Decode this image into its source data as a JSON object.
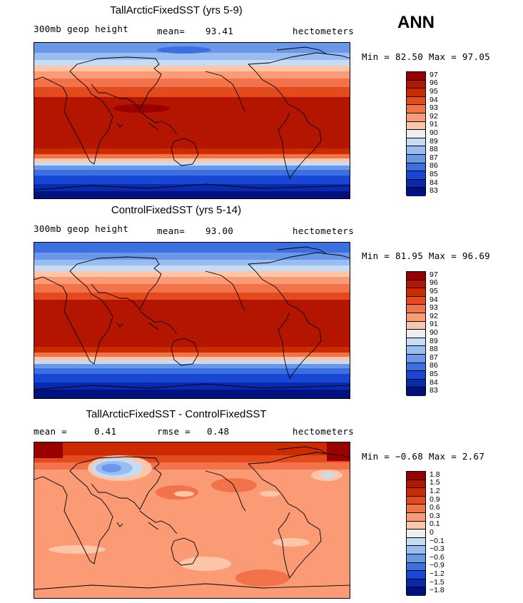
{
  "season": "ANN",
  "units": "hectometers",
  "panels": [
    {
      "title": "TallArcticFixedSST (yrs 5-9)",
      "left_label": "300mb geop height",
      "mean_label": "mean=",
      "mean_value": "93.41",
      "minmax": "Min =  82.50 Max =  97.05",
      "legend": [
        "97",
        "96",
        "95",
        "94",
        "93",
        "92",
        "91",
        "90",
        "89",
        "88",
        "87",
        "86",
        "85",
        "84",
        "83"
      ]
    },
    {
      "title": "ControlFixedSST (yrs 5-14)",
      "left_label": "300mb geop height",
      "mean_label": "mean=",
      "mean_value": "93.00",
      "minmax": "Min =  81.95 Max =  96.69",
      "legend": [
        "97",
        "96",
        "95",
        "94",
        "93",
        "92",
        "91",
        "90",
        "89",
        "88",
        "87",
        "86",
        "85",
        "84",
        "83"
      ]
    },
    {
      "title": "TallArcticFixedSST - ControlFixedSST",
      "mean_label": "mean =",
      "mean_value": "0.41",
      "rmse_label": "rmse =",
      "rmse_value": "0.48",
      "minmax": "Min =  −0.68 Max =   2.67",
      "legend": [
        "1.8",
        "1.5",
        "1.2",
        "0.9",
        "0.6",
        "0.3",
        "0.1",
        "0",
        "−0.1",
        "−0.3",
        "−0.6",
        "−0.9",
        "−1.2",
        "−1.5",
        "−1.8"
      ]
    }
  ],
  "colors": {
    "scale": [
      "#990000",
      "#b31500",
      "#cc2a00",
      "#e34a1c",
      "#f2734a",
      "#fa9b75",
      "#fdc6a9",
      "#eeeeee",
      "#c6dbf4",
      "#99bdf0",
      "#6b97e8",
      "#3c6fe0",
      "#1847d6",
      "#0a2aad",
      "#00107f"
    ]
  }
}
